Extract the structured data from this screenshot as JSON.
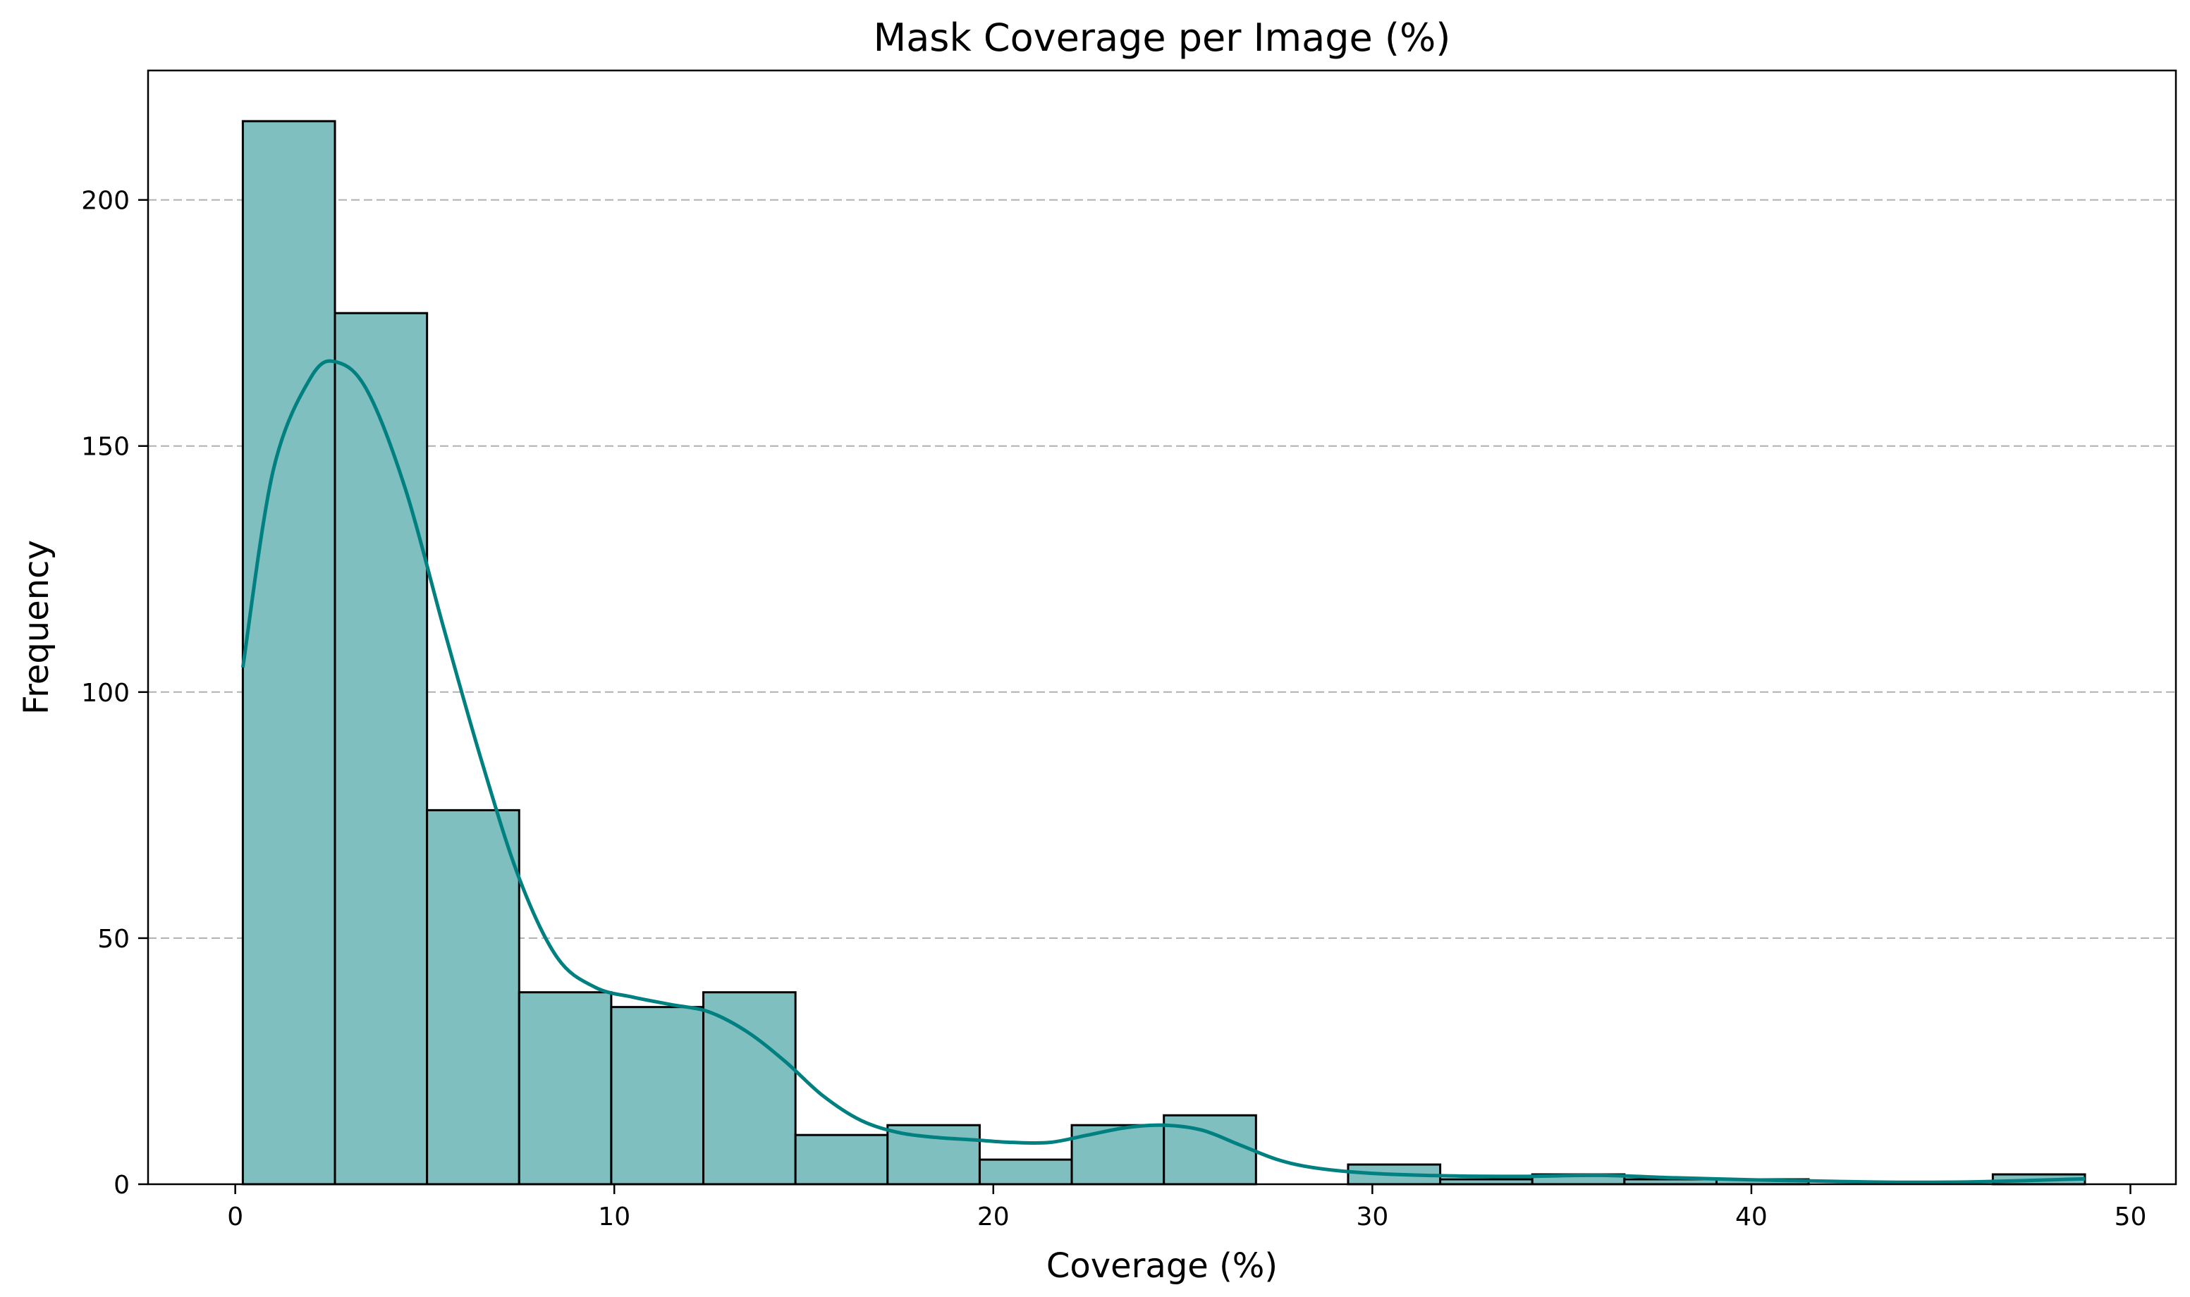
{
  "chart_data": {
    "type": "bar",
    "title": "Mask Coverage per Image (%)",
    "xlabel": "Coverage (%)",
    "ylabel": "Frequency",
    "xlim": [
      -2.3,
      51.2
    ],
    "ylim": [
      0,
      226.3
    ],
    "xticks": [
      0,
      10,
      20,
      30,
      40,
      50
    ],
    "yticks": [
      0,
      50,
      100,
      150,
      200
    ],
    "grid": {
      "axis": "y",
      "style": "dashed"
    },
    "bins": {
      "edges": [
        0.2,
        2.63,
        5.06,
        7.49,
        9.92,
        12.35,
        14.78,
        17.21,
        19.64,
        22.07,
        24.5,
        26.93,
        29.36,
        31.79,
        34.22,
        36.65,
        39.08,
        41.51,
        43.94,
        46.37,
        48.8
      ],
      "counts": [
        216,
        177,
        76,
        39,
        36,
        39,
        10,
        12,
        5,
        12,
        14,
        0,
        4,
        1,
        2,
        1,
        1,
        0,
        0,
        2
      ]
    },
    "kde": {
      "x": [
        0.2,
        1.0,
        2.0,
        2.7,
        3.5,
        4.5,
        5.5,
        6.5,
        7.5,
        8.5,
        9.5,
        10.5,
        11.5,
        12.5,
        13.5,
        14.5,
        15.5,
        16.5,
        17.5,
        18.5,
        19.5,
        20.5,
        21.5,
        22.5,
        23.5,
        24.5,
        25.5,
        26.5,
        27.5,
        28.5,
        30.0,
        32.0,
        34.0,
        36.0,
        38.0,
        40.0,
        42.0,
        44.0,
        46.0,
        48.8
      ],
      "y": [
        105,
        145,
        164,
        167,
        161,
        141,
        113,
        86,
        62,
        46,
        40,
        38,
        36.5,
        35,
        31,
        25,
        18,
        13,
        10.5,
        9.5,
        9,
        8.5,
        8.5,
        10,
        11.5,
        12,
        11,
        8,
        5,
        3.3,
        2.2,
        1.7,
        1.6,
        1.8,
        1.3,
        0.9,
        0.6,
        0.4,
        0.5,
        1.1
      ]
    },
    "colors": {
      "bar_fill": "#7fbfbf",
      "bar_edge": "#000000",
      "kde_line": "#008080",
      "grid": "#b0b0b0"
    }
  }
}
